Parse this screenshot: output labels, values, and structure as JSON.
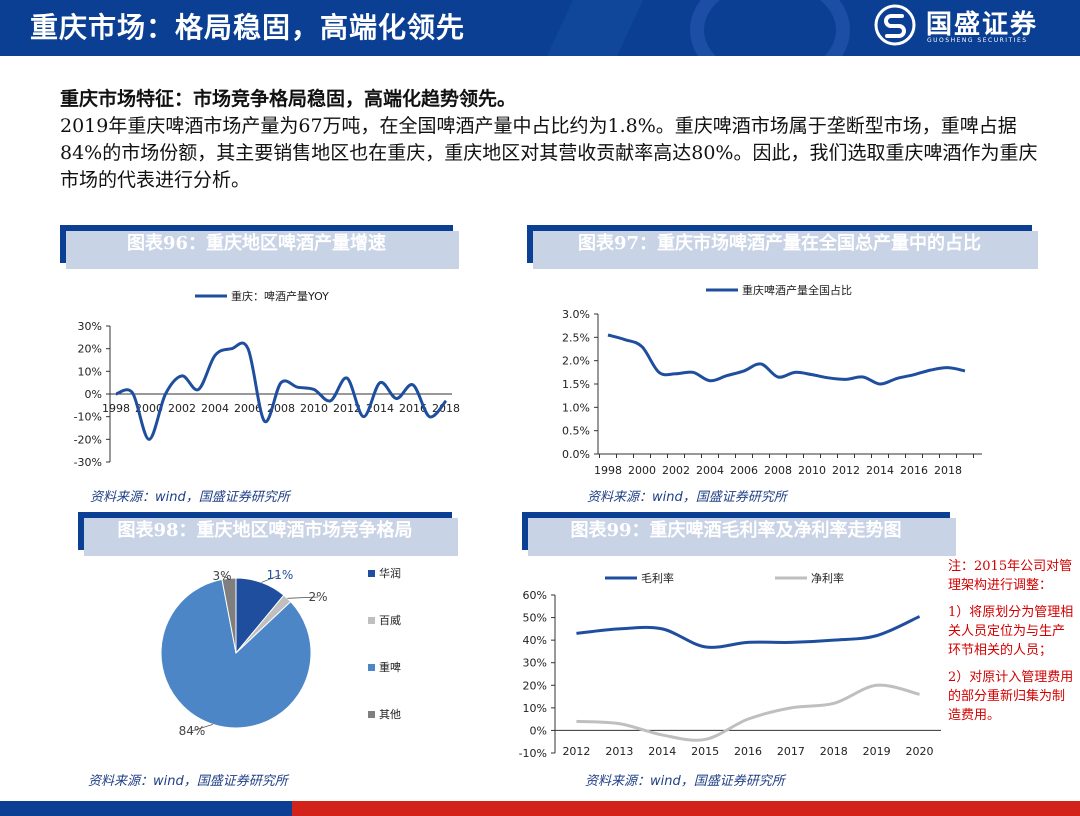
{
  "header": {
    "title": "重庆市场：格局稳固，高端化领先",
    "brand_name": "国盛证券",
    "brand_sub": "GUOSHENG SECURITIES"
  },
  "intro": {
    "heading": "重庆市场特征：市场竞争格局稳固，高端化趋势领先。",
    "body": "2019年重庆啤酒市场产量为67万吨，在全国啤酒产量中占比约为1.8%。重庆啤酒市场属于垄断型市场，重啤占据84%的市场份额，其主要销售地区也在重庆，重庆地区对其营收贡献率高达80%。因此，我们选取重庆啤酒作为重庆市场的代表进行分析。"
  },
  "chart_titles": {
    "c96": "图表96：重庆地区啤酒产量增速",
    "c97": "图表97：重庆市场啤酒产量在全国总产量中的占比",
    "c98": "图表98：重庆地区啤酒市场竞争格局",
    "c99": "图表99：重庆啤酒毛利率及净利率走势图"
  },
  "sources": {
    "s96": "资料来源：wind，国盛证券研究所",
    "s97": "资料来源：wind，国盛证券研究所",
    "s98": "资料来源：wind，国盛证券研究所",
    "s99": "资料来源：wind，国盛证券研究所"
  },
  "note": {
    "p1": "注：2015年公司对管理架构进行调整：",
    "p2": "1）将原划分为管理相关人员定位为与生产环节相关的人员；",
    "p3": "2）对原计入管理费用的部分重新归集为制造费用。"
  },
  "colors": {
    "navy": "#0b3f94",
    "line_blue": "#1f4e9e",
    "pie_blue": "#4d86c6",
    "pie_dark": "#1f4e9e",
    "pie_gray": "#7f7f7f",
    "net_gray": "#bfbfbf",
    "note_red": "#d40000"
  },
  "chart_data": [
    {
      "id": "c96",
      "type": "line",
      "series": [
        {
          "name": "重庆：啤酒产量YOY",
          "x": [
            1998,
            1999,
            2000,
            2001,
            2002,
            2003,
            2004,
            2005,
            2006,
            2007,
            2008,
            2009,
            2010,
            2011,
            2012,
            2013,
            2014,
            2015,
            2016,
            2017,
            2018
          ],
          "values": [
            0,
            0.5,
            -20,
            0,
            8,
            2,
            17,
            20,
            20,
            -12,
            5,
            3,
            2,
            -3,
            7,
            -10,
            5,
            -2,
            4,
            -10,
            -3
          ]
        }
      ],
      "xticks": [
        "1998",
        "2000",
        "2002",
        "2004",
        "2006",
        "2008",
        "2010",
        "2012",
        "2014",
        "2016",
        "2018"
      ],
      "yticks": [
        "30%",
        "20%",
        "10%",
        "0%",
        "-10%",
        "-20%",
        "-30%"
      ],
      "ylim": [
        -30,
        30
      ]
    },
    {
      "id": "c97",
      "type": "line",
      "series": [
        {
          "name": "重庆啤酒产量全国占比",
          "x": [
            1998,
            1999,
            2000,
            2001,
            2002,
            2003,
            2004,
            2005,
            2006,
            2007,
            2008,
            2009,
            2010,
            2011,
            2012,
            2013,
            2014,
            2015,
            2016,
            2017,
            2018,
            2019
          ],
          "values": [
            2.55,
            2.45,
            2.3,
            1.75,
            1.72,
            1.75,
            1.57,
            1.68,
            1.78,
            1.93,
            1.65,
            1.75,
            1.7,
            1.63,
            1.6,
            1.65,
            1.5,
            1.62,
            1.7,
            1.8,
            1.85,
            1.78
          ]
        }
      ],
      "xticks": [
        "1998",
        "2000",
        "2002",
        "2004",
        "2006",
        "2008",
        "2010",
        "2012",
        "2014",
        "2016",
        "2018"
      ],
      "yticks": [
        "3.0%",
        "2.5%",
        "2.0%",
        "1.5%",
        "1.0%",
        "0.5%",
        "0.0%"
      ],
      "ylim": [
        0,
        3.0
      ]
    },
    {
      "id": "c98",
      "type": "pie",
      "slices": [
        {
          "name": "华润",
          "value": 11,
          "label": "11%",
          "color": "#1f4e9e"
        },
        {
          "name": "百威",
          "value": 2,
          "label": "2%",
          "color": "#bfbfbf"
        },
        {
          "name": "重啤",
          "value": 84,
          "label": "84%",
          "color": "#4d86c6"
        },
        {
          "name": "其他",
          "value": 3,
          "label": "3%",
          "color": "#7f7f7f"
        }
      ]
    },
    {
      "id": "c99",
      "type": "line",
      "x": [
        2012,
        2013,
        2014,
        2015,
        2016,
        2017,
        2018,
        2019,
        2020
      ],
      "series": [
        {
          "name": "毛利率",
          "values": [
            43,
            45,
            45,
            37,
            39,
            39,
            40,
            42,
            50.5
          ],
          "color": "#1f4e9e"
        },
        {
          "name": "净利率",
          "values": [
            4,
            3,
            -2,
            -4,
            5,
            10,
            12,
            20,
            16
          ],
          "color": "#bfbfbf"
        }
      ],
      "xticks": [
        "2012",
        "2013",
        "2014",
        "2015",
        "2016",
        "2017",
        "2018",
        "2019",
        "2020"
      ],
      "yticks": [
        "60%",
        "50%",
        "40%",
        "30%",
        "20%",
        "10%",
        "0%",
        "-10%"
      ],
      "ylim": [
        -10,
        60
      ]
    }
  ]
}
